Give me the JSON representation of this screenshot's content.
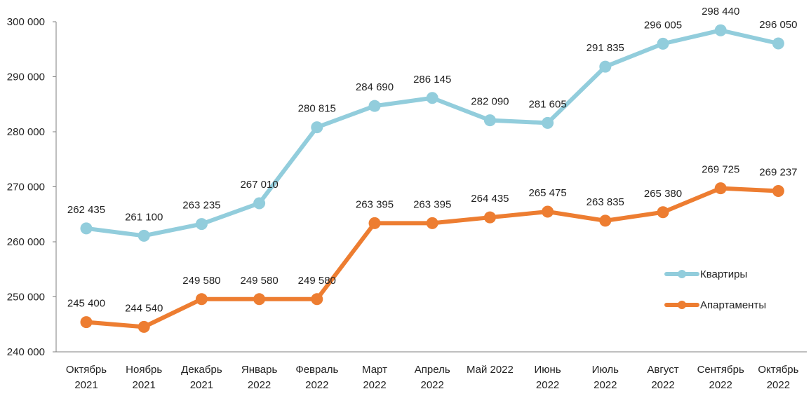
{
  "chart_data": {
    "type": "line",
    "title": "",
    "xlabel": "",
    "ylabel": "",
    "ylim": [
      240000,
      300000
    ],
    "yticks": [
      240000,
      250000,
      260000,
      270000,
      280000,
      290000,
      300000
    ],
    "ytick_labels": [
      "240 000",
      "250 000",
      "260 000",
      "270 000",
      "280 000",
      "290 000",
      "300 000"
    ],
    "grid": false,
    "legend_position": "right",
    "categories": [
      [
        "Октябрь",
        "2021"
      ],
      [
        "Ноябрь",
        "2021"
      ],
      [
        "Декабрь",
        "2021"
      ],
      [
        "Январь",
        "2022"
      ],
      [
        "Февраль",
        "2022"
      ],
      [
        "Март",
        "2022"
      ],
      [
        "Апрель",
        "2022"
      ],
      [
        "Май 2022"
      ],
      [
        "Июнь",
        "2022"
      ],
      [
        "Июль",
        "2022"
      ],
      [
        "Август",
        "2022"
      ],
      [
        "Сентябрь",
        "2022"
      ],
      [
        "Октябрь",
        "2022"
      ]
    ],
    "series": [
      {
        "name": "Квартиры",
        "color": "#92CDDC",
        "values": [
          262435,
          261100,
          263235,
          267010,
          280815,
          284690,
          286145,
          282090,
          281605,
          291835,
          296005,
          298440,
          296050
        ],
        "labels": [
          "262 435",
          "261 100",
          "263 235",
          "267 010",
          "280 815",
          "284 690",
          "286 145",
          "282 090",
          "281 605",
          "291 835",
          "296 005",
          "298 440",
          "296 050"
        ]
      },
      {
        "name": "Апартаменты",
        "color": "#ED7D31",
        "values": [
          245400,
          244540,
          249580,
          249580,
          249580,
          263395,
          263395,
          264435,
          265475,
          263835,
          265380,
          269725,
          269237
        ],
        "labels": [
          "245 400",
          "244 540",
          "249 580",
          "249 580",
          "249 580",
          "263 395",
          "263 395",
          "264 435",
          "265 475",
          "263 835",
          "265 380",
          "269 725",
          "269 237"
        ]
      }
    ]
  }
}
